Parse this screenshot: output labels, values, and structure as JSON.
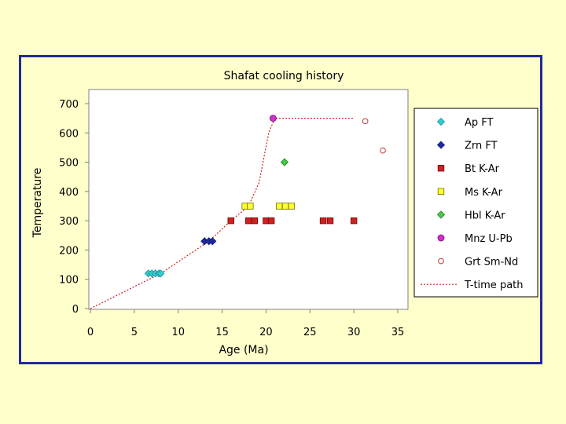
{
  "chart_data": {
    "type": "scatter",
    "title": "Shafat cooling history",
    "xlabel": "Age (Ma)",
    "ylabel": "Temperature",
    "xlim": [
      0,
      35
    ],
    "ylim": [
      0,
      700
    ],
    "xticks": [
      0,
      5,
      10,
      15,
      20,
      25,
      30,
      35
    ],
    "yticks": [
      0,
      100,
      200,
      300,
      400,
      500,
      600,
      700
    ],
    "grid": false,
    "legend_position": "right",
    "series": [
      {
        "name": "Ap FT",
        "marker": "diamond",
        "color": "#33cccc",
        "stroke": "#1f8f9a",
        "points": [
          [
            6.6,
            120
          ],
          [
            7.0,
            120
          ],
          [
            7.4,
            120
          ],
          [
            7.8,
            120
          ],
          [
            8.0,
            120
          ]
        ]
      },
      {
        "name": "Zrn FT",
        "marker": "diamond",
        "color": "#1f2aa0",
        "stroke": "#101870",
        "points": [
          [
            13.0,
            230
          ],
          [
            13.5,
            230
          ],
          [
            13.9,
            230
          ]
        ]
      },
      {
        "name": "Bt K-Ar",
        "marker": "square",
        "color": "#cc2222",
        "stroke": "#800000",
        "points": [
          [
            16.0,
            300
          ],
          [
            18.0,
            300
          ],
          [
            18.7,
            300
          ],
          [
            20.0,
            300
          ],
          [
            20.6,
            300
          ],
          [
            26.5,
            300
          ],
          [
            27.3,
            300
          ],
          [
            30.0,
            300
          ]
        ]
      },
      {
        "name": "Ms K-Ar",
        "marker": "square",
        "color": "#ffff33",
        "stroke": "#707000",
        "points": [
          [
            17.6,
            350
          ],
          [
            18.2,
            350
          ],
          [
            21.5,
            350
          ],
          [
            22.2,
            350
          ],
          [
            22.9,
            350
          ]
        ]
      },
      {
        "name": "Hbl K-Ar",
        "marker": "diamond",
        "color": "#44cc44",
        "stroke": "#1f7a1f",
        "points": [
          [
            22.1,
            500
          ]
        ]
      },
      {
        "name": "Mnz U-Pb",
        "marker": "circle",
        "color": "#cc33cc",
        "stroke": "#800080",
        "points": [
          [
            20.8,
            650
          ]
        ]
      },
      {
        "name": "Grt Sm-Nd",
        "marker": "open-circle",
        "color": "#ffffff",
        "stroke": "#cc3333",
        "points": [
          [
            31.3,
            640
          ],
          [
            33.3,
            540
          ]
        ]
      },
      {
        "name": "T-time path",
        "marker": "dotted-line",
        "color": "#cc2222",
        "points": [
          [
            0,
            0
          ],
          [
            8,
            120
          ],
          [
            13.5,
            230
          ],
          [
            16,
            300
          ],
          [
            18,
            350
          ],
          [
            19.2,
            430
          ],
          [
            20.3,
            600
          ],
          [
            21,
            650
          ],
          [
            30,
            650
          ]
        ]
      }
    ]
  }
}
